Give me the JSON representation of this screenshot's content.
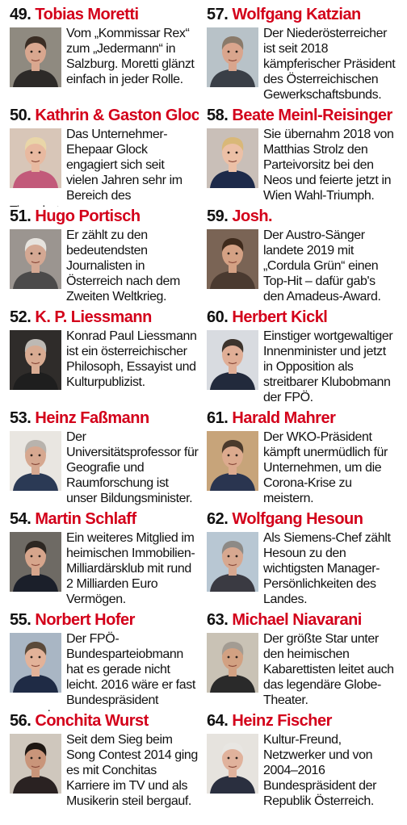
{
  "left_column": [
    {
      "number": "49.",
      "name": "Tobias Moretti",
      "text": "Vom „Kommissar Rex“ zum „Jedermann“ in Salzburg. Moretti glänzt einfach in jeder Rolle.",
      "photo_bg": "#8f8a80",
      "skin": "#d9a78f",
      "hair": "#3a2d24",
      "shirt": "#2d2a28"
    },
    {
      "number": "50.",
      "name": "Kathrin & Gaston Glock",
      "text": "Das Unternehmer-Ehepaar Glock engagiert sich seit vielen Jahren sehr im Bereich des Tierschutzes.",
      "photo_bg": "#d8c6b8",
      "skin": "#e8b9a0",
      "hair": "#e9d6a8",
      "shirt": "#c25a7a"
    },
    {
      "number": "51.",
      "name": "Hugo Portisch",
      "text": "Er zählt zu den bedeutendsten Journalisten in Österreich nach dem Zweiten Weltkrieg.",
      "photo_bg": "#9b9590",
      "skin": "#d4a893",
      "hair": "#e6e3de",
      "shirt": "#4b4a4a"
    },
    {
      "number": "52.",
      "name": "K. P. Liessmann",
      "text": "Konrad Paul Liessmann ist ein österreichischer Philosoph, Essayist und Kulturpublizist.",
      "photo_bg": "#2f2c2a",
      "skin": "#d8ab92",
      "hair": "#bdb9b4",
      "shirt": "#1e1e1e"
    },
    {
      "number": "53.",
      "name": "Heinz Faßmann",
      "text": "Der Universitätsprofessor für Geografie und Raumforschung ist unser Bildungsminister.",
      "photo_bg": "#e9e6e1",
      "skin": "#d6a890",
      "hair": "#b8b3ad",
      "shirt": "#2b3a55"
    },
    {
      "number": "54.",
      "name": "Martin Schlaff",
      "text": "Ein weiteres Mitglied im heimischen Immobilien-Milliardärsklub mit rund 2 Milliarden Euro Vermögen.",
      "photo_bg": "#6e6a64",
      "skin": "#d6a58c",
      "hair": "#2d2722",
      "shirt": "#1b1f2a"
    },
    {
      "number": "55.",
      "name": "Norbert Hofer",
      "text": "Der FPÖ-Bundesparteiobmann hat es gerade nicht leicht. 2016 wäre er fast Bundespräsident geworden.",
      "photo_bg": "#a9b6c4",
      "skin": "#e2b299",
      "hair": "#5b4a3a",
      "shirt": "#1f2b45"
    },
    {
      "number": "56.",
      "name": "Conchita Wurst",
      "text": "Seit dem Sieg beim Song Contest 2014 ging es mit Conchitas Karriere im TV und als Musikerin steil bergauf.",
      "photo_bg": "#cfc7bd",
      "skin": "#c9957a",
      "hair": "#1e1713",
      "shirt": "#2a2222"
    }
  ],
  "right_column": [
    {
      "number": "57.",
      "name": "Wolfgang Katzian",
      "text": "Der Niederösterreicher ist seit 2018 kämpferischer Präsident des Österreichischen Gewerkschaftsbunds.",
      "photo_bg": "#b8c2c8",
      "skin": "#d9a58d",
      "hair": "#8a7a6a",
      "shirt": "#3a3f47"
    },
    {
      "number": "58.",
      "name": "Beate Meinl-Reisinger",
      "text": "Sie übernahm 2018 von Matthias Strolz den Parteivorsitz bei den Neos und feierte jetzt in Wien Wahl-Triumph.",
      "photo_bg": "#c9bfb8",
      "skin": "#ecc0a6",
      "hair": "#d9b878",
      "shirt": "#1d2a4a"
    },
    {
      "number": "59.",
      "name": "Josh.",
      "text": "Der Austro-Sänger landete 2019 mit „Cordula Grün“ einen Top-Hit – dafür gab's den Amadeus-Award.",
      "photo_bg": "#7a6455",
      "skin": "#d4a184",
      "hair": "#3e2a1c",
      "shirt": "#4a3a30"
    },
    {
      "number": "60.",
      "name": "Herbert Kickl",
      "text": "Einstiger wortgewaltiger Innenminister und jetzt in Opposition als streitbarer Klubobmann der FPÖ.",
      "photo_bg": "#d8dbe0",
      "skin": "#e0ae96",
      "hair": "#3d342d",
      "shirt": "#222a3c"
    },
    {
      "number": "61.",
      "name": "Harald Mahrer",
      "text": "Der WKO-Präsident kämpft unermüdlich für Unternehmen, um die Corona-Krise zu meistern.",
      "photo_bg": "#c7a47a",
      "skin": "#dcaa8e",
      "hair": "#4a3a2c",
      "shirt": "#2a3550"
    },
    {
      "number": "62.",
      "name": "Wolfgang Hesoun",
      "text": "Als Siemens-Chef zählt Hesoun zu den wichtigsten Manager-Persönlichkeiten des Landes.",
      "photo_bg": "#b8c7d3",
      "skin": "#d7a890",
      "hair": "#8d8a86",
      "shirt": "#3a3a42"
    },
    {
      "number": "63.",
      "name": "Michael Niavarani",
      "text": "Der größte Star unter den heimischen Kabarettisten leitet auch das legendäre Globe-Theater.",
      "photo_bg": "#c9c2b5",
      "skin": "#d2a182",
      "hair": "#a39c93",
      "shirt": "#2a2a2a"
    },
    {
      "number": "64.",
      "name": "Heinz Fischer",
      "text": "Kultur-Freund, Netzwerker und von 2004–2016 Bundespräsident der Republik Österreich.",
      "photo_bg": "#e6e3de",
      "skin": "#e0b29c",
      "hair": "#e8e6e2",
      "shirt": "#2a2f3f"
    }
  ]
}
